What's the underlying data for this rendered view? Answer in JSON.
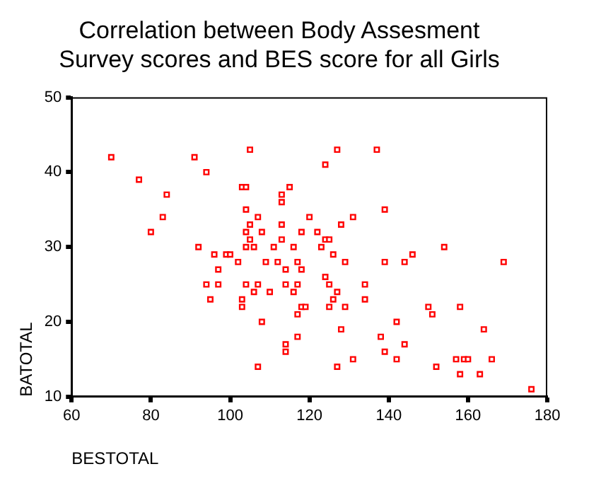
{
  "chart_data": {
    "type": "scatter",
    "title": [
      "Correlation between Body Assesment",
      "Survey scores and BES score for all Girls"
    ],
    "xlabel": "BESTOTAL",
    "ylabel": "BATOTAL",
    "xlim": [
      60,
      180
    ],
    "xticks": [
      60,
      80,
      100,
      120,
      140,
      160,
      180
    ],
    "ylim": [
      10,
      50
    ],
    "yticks": [
      10,
      20,
      30,
      40,
      50
    ],
    "grid": false,
    "legend": false,
    "marker": "square",
    "series": [
      {
        "color": "#ff0000",
        "x": [
          70,
          77,
          84,
          83,
          80,
          91,
          94,
          105,
          103,
          104,
          115,
          113,
          113,
          104,
          107,
          105,
          113,
          104,
          108,
          105,
          113,
          127,
          137,
          124,
          139,
          120,
          131,
          128,
          118,
          122,
          124,
          125,
          92,
          96,
          99,
          100,
          102,
          97,
          94,
          97,
          95,
          104,
          103,
          103,
          106,
          107,
          110,
          108,
          107,
          104,
          106,
          111,
          116,
          109,
          112,
          117,
          114,
          114,
          117,
          116,
          117,
          117,
          114,
          114,
          123,
          126,
          146,
          154,
          129,
          139,
          144,
          169,
          118,
          124,
          125,
          134,
          127,
          126,
          134,
          118,
          119,
          125,
          129,
          150,
          158,
          151,
          142,
          128,
          138,
          164,
          144,
          139,
          131,
          142,
          157,
          159,
          160,
          166,
          127,
          152,
          158,
          163,
          176
        ],
        "values": [
          42,
          39,
          37,
          34,
          32,
          42,
          40,
          43,
          38,
          38,
          38,
          37,
          36,
          35,
          34,
          33,
          33,
          32,
          32,
          31,
          31,
          43,
          43,
          41,
          35,
          34,
          34,
          33,
          32,
          32,
          31,
          31,
          30,
          29,
          29,
          29,
          28,
          27,
          25,
          25,
          23,
          25,
          23,
          22,
          24,
          25,
          24,
          20,
          14,
          30,
          30,
          30,
          30,
          28,
          28,
          28,
          27,
          25,
          25,
          24,
          21,
          18,
          17,
          16,
          30,
          29,
          29,
          30,
          28,
          28,
          28,
          28,
          27,
          26,
          25,
          25,
          24,
          23,
          23,
          22,
          22,
          22,
          22,
          22,
          22,
          21,
          20,
          19,
          18,
          19,
          17,
          16,
          15,
          15,
          15,
          15,
          15,
          15,
          14,
          14,
          13,
          13,
          11
        ]
      }
    ]
  }
}
